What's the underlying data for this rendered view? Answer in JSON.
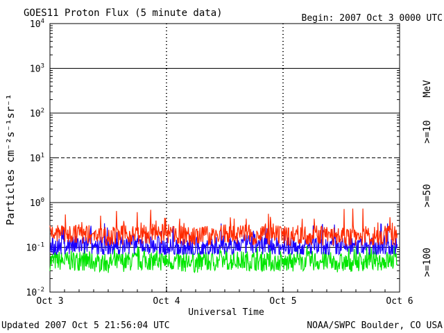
{
  "header": {
    "title": "GOES11 Proton Flux (5 minute data)",
    "begin": "Begin: 2007 Oct 3 0000 UTC"
  },
  "footer": {
    "updated": "Updated 2007 Oct  5 21:56:04 UTC",
    "credit": "NOAA/SWPC Boulder, CO USA"
  },
  "axes": {
    "ylabel": "Particles cm⁻²s⁻¹sr⁻¹",
    "xlabel": "Universal Time",
    "y_ticks": [
      {
        "base": "10",
        "exp": "4"
      },
      {
        "base": "10",
        "exp": "3"
      },
      {
        "base": "10",
        "exp": "2"
      },
      {
        "base": "10",
        "exp": "1"
      },
      {
        "base": "10",
        "exp": "0"
      },
      {
        "base": "10",
        "exp": "-1"
      },
      {
        "base": "10",
        "exp": "-2"
      }
    ],
    "x_ticks": [
      "Oct 3",
      "Oct 4",
      "Oct 5",
      "Oct 6"
    ]
  },
  "legend": {
    "unit": "MeV",
    "entries": [
      {
        "label": ">=10",
        "color": "#ff2a00"
      },
      {
        "label": ">=50",
        "color": "#1a00ff"
      },
      {
        "label": ">=100",
        "color": "#00e600"
      }
    ]
  },
  "chart_data": {
    "type": "line",
    "title": "GOES11 Proton Flux (5 minute data)",
    "xlabel": "Universal Time",
    "ylabel": "Particles cm⁻²s⁻¹sr⁻¹",
    "yscale": "log",
    "ylim": [
      0.01,
      10000
    ],
    "xlim": [
      "2007-10-03 00:00",
      "2007-10-06 00:00"
    ],
    "x_ticks": [
      "Oct 3",
      "Oct 4",
      "Oct 5",
      "Oct 6"
    ],
    "grid": "horizontal lines at each decade (10^1 dashed)",
    "legend_placement": "right side, vertical",
    "series": [
      {
        "name": ">=10 MeV",
        "color": "#ff2a00",
        "x_hours": [
          0,
          6,
          12,
          18,
          24,
          30,
          36,
          42,
          48,
          54,
          60,
          66,
          71
        ],
        "values": [
          0.2,
          0.2,
          0.18,
          0.19,
          0.2,
          0.17,
          0.2,
          0.19,
          0.18,
          0.19,
          0.17,
          0.18,
          0.18
        ],
        "range": [
          0.11,
          0.75
        ]
      },
      {
        "name": ">=50 MeV",
        "color": "#1a00ff",
        "x_hours": [
          0,
          6,
          12,
          18,
          24,
          30,
          36,
          42,
          48,
          54,
          60,
          66,
          71
        ],
        "values": [
          0.1,
          0.11,
          0.1,
          0.12,
          0.1,
          0.09,
          0.11,
          0.12,
          0.1,
          0.1,
          0.1,
          0.1,
          0.1
        ],
        "range": [
          0.07,
          0.35
        ]
      },
      {
        "name": ">=100 MeV",
        "color": "#00e600",
        "x_hours": [
          0,
          6,
          12,
          18,
          24,
          30,
          36,
          42,
          48,
          54,
          60,
          66,
          71
        ],
        "values": [
          0.05,
          0.05,
          0.045,
          0.05,
          0.05,
          0.045,
          0.05,
          0.05,
          0.045,
          0.05,
          0.045,
          0.05,
          0.05
        ],
        "range": [
          0.025,
          0.11
        ]
      }
    ]
  }
}
